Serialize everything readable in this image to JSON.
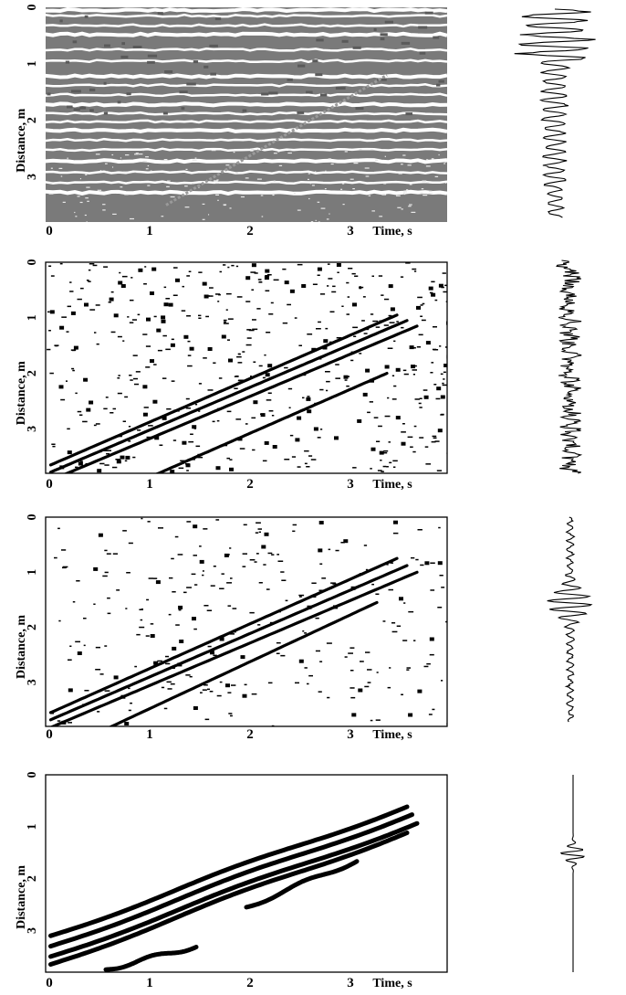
{
  "chart_data": [
    {
      "type": "heatmap",
      "panel": "a",
      "background": "#7a7a7a",
      "xlabel": "Time, s",
      "ylabel": "Distance, m",
      "x_ticks": [
        "0",
        "1",
        "2",
        "3"
      ],
      "y_ticks": [
        "0",
        "1",
        "2",
        "3"
      ],
      "xlim": [
        0,
        4.0
      ],
      "ylim": [
        0,
        3.8
      ],
      "bands_distance_m": [
        0.05,
        0.15,
        0.32,
        0.48,
        0.75,
        0.95,
        1.22,
        1.38,
        1.55,
        1.72,
        1.88,
        2.02,
        2.18,
        2.35,
        2.52,
        2.72,
        2.92,
        3.1,
        3.28
      ],
      "arrival_band": {
        "time_s": [
          1.2,
          3.4
        ],
        "distance_m": [
          3.5,
          1.2
        ]
      },
      "waveform": "broadband reflections"
    },
    {
      "type": "heatmap",
      "panel": "b",
      "background": "#ffffff",
      "xlabel": "Time, s",
      "ylabel": "Distance, m",
      "x_ticks": [
        "0",
        "1",
        "2",
        "3"
      ],
      "y_ticks": [
        "0",
        "1",
        "2",
        "3"
      ],
      "xlim": [
        0,
        4.0
      ],
      "ylim": [
        0,
        3.8
      ],
      "arrivals": [
        {
          "time_s": [
            0.05,
            3.5
          ],
          "distance_m": [
            3.65,
            0.95
          ]
        },
        {
          "time_s": [
            0.05,
            3.6
          ],
          "distance_m": [
            3.78,
            1.05
          ]
        },
        {
          "time_s": [
            0.15,
            3.7
          ],
          "distance_m": [
            3.85,
            1.15
          ]
        },
        {
          "time_s": [
            1.0,
            3.4
          ],
          "distance_m": [
            3.9,
            2.0
          ]
        }
      ],
      "noise_density": 0.55,
      "waveform": "noisy"
    },
    {
      "type": "heatmap",
      "panel": "c",
      "background": "#ffffff",
      "xlabel": "Time, s",
      "ylabel": "Distance, m",
      "x_ticks": [
        "0",
        "1",
        "2",
        "3"
      ],
      "y_ticks": [
        "0",
        "1",
        "2",
        "3"
      ],
      "xlim": [
        0,
        4.0
      ],
      "ylim": [
        0,
        3.8
      ],
      "arrivals": [
        {
          "time_s": [
            0.05,
            3.5
          ],
          "distance_m": [
            3.55,
            0.75
          ]
        },
        {
          "time_s": [
            0.05,
            3.6
          ],
          "distance_m": [
            3.68,
            0.88
          ]
        },
        {
          "time_s": [
            0.05,
            3.7
          ],
          "distance_m": [
            3.82,
            1.0
          ]
        },
        {
          "time_s": [
            0.6,
            3.3
          ],
          "distance_m": [
            3.85,
            1.55
          ]
        }
      ],
      "noise_density": 0.3,
      "waveform": "wavelet centered near 2 m"
    },
    {
      "type": "heatmap",
      "panel": "d",
      "background": "#ffffff",
      "xlabel": "Time, s",
      "ylabel": "Distance, m",
      "x_ticks": [
        "0",
        "1",
        "2",
        "3"
      ],
      "y_ticks": [
        "0",
        "1",
        "2",
        "3"
      ],
      "xlim": [
        0,
        4.0
      ],
      "ylim": [
        0,
        3.8
      ],
      "arrivals": [
        {
          "time_s": [
            0.05,
            3.6
          ],
          "distance_m": [
            3.1,
            0.6
          ]
        },
        {
          "time_s": [
            0.05,
            3.65
          ],
          "distance_m": [
            3.3,
            0.75
          ]
        },
        {
          "time_s": [
            0.05,
            3.7
          ],
          "distance_m": [
            3.5,
            0.92
          ]
        },
        {
          "time_s": [
            0.05,
            3.6
          ],
          "distance_m": [
            3.65,
            1.1
          ]
        },
        {
          "time_s": [
            2.0,
            3.1
          ],
          "distance_m": [
            2.55,
            1.65
          ]
        },
        {
          "time_s": [
            0.6,
            1.5
          ],
          "distance_m": [
            3.75,
            3.3
          ]
        }
      ],
      "noise_density": 0.0,
      "waveform": "clean wavelet centered near 1.9 m"
    }
  ]
}
